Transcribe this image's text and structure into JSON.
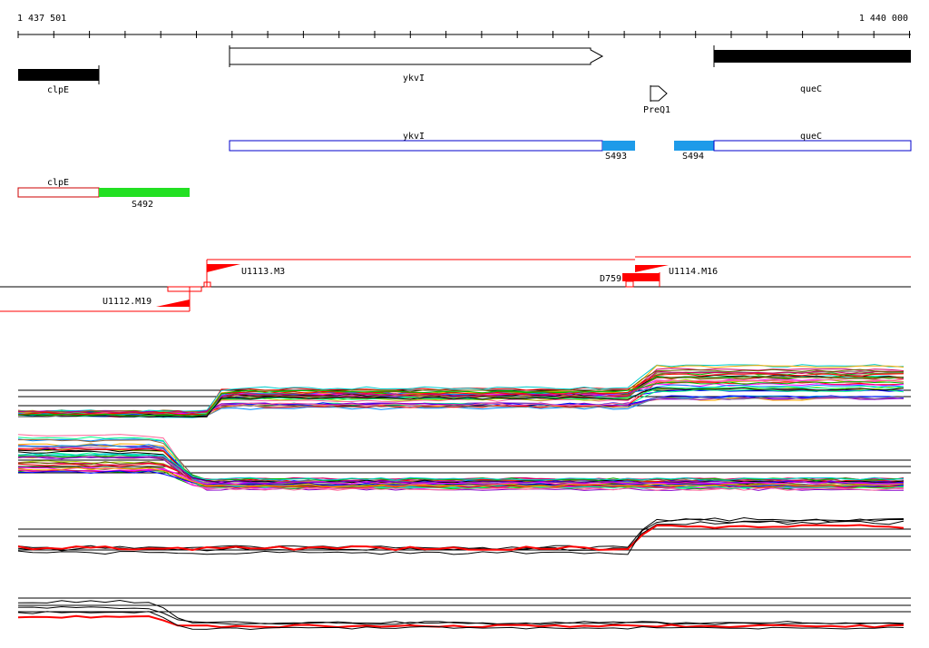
{
  "ruler": {
    "start_label": "1 437 501",
    "end_label": "1 440 000"
  },
  "genes": {
    "clpE": "clpE",
    "ykvI": "ykvI",
    "queC": "queC",
    "preq1": "PreQ1"
  },
  "transcripts": {
    "ykvI": "ykvI",
    "queC": "queC",
    "s493": "S493",
    "s494": "S494",
    "clpE": "clpE",
    "s492": "S492"
  },
  "segments": {
    "u1113": "U1113.M3",
    "u1112": "U1112.M19",
    "d759": "D759",
    "u1114": "U1114.M16"
  },
  "colors": {
    "gene_fill": "#000000",
    "utr_blue": "#1e9be9",
    "utr_green": "#22e022",
    "transcript_blue": "#0000cc",
    "transcript_red": "#cc0000",
    "segment_red": "#ff0000",
    "profile_palette": [
      "#ff0000",
      "#00bb00",
      "#0000ff",
      "#ff00ff",
      "#00cccc",
      "#ffaa00",
      "#8800cc",
      "#888888",
      "#aacc00",
      "#ff6699",
      "#0088ff",
      "#996633",
      "#00ff88",
      "#cc0066",
      "#666600",
      "#000000"
    ]
  }
}
